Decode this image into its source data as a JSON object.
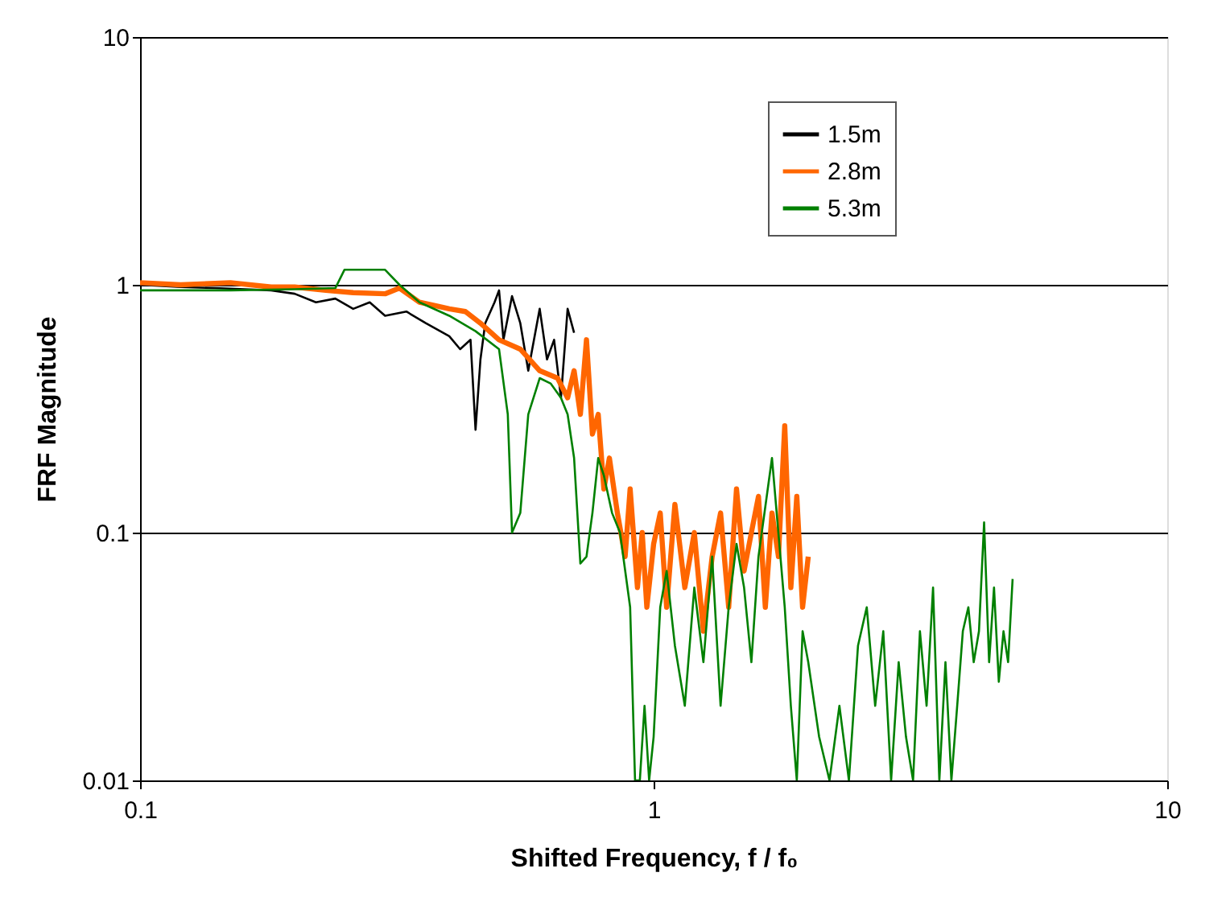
{
  "chart_data": {
    "type": "line",
    "xlabel": "Shifted Frequency, f / f₀",
    "ylabel": "FRF Magnitude",
    "log": "xy",
    "grid": "y",
    "legend": "top right",
    "line_style": "solid",
    "marker": "none",
    "xlim": [
      0.1,
      10
    ],
    "xticks": [
      0.1,
      1,
      10
    ],
    "ylim": [
      0.01,
      10
    ],
    "yticks": [
      0.01,
      0.1,
      1,
      10
    ],
    "series": [
      {
        "name": "1.5m",
        "color": "#000000",
        "x": [
          0.1,
          0.12,
          0.14,
          0.16,
          0.18,
          0.2,
          0.22,
          0.24,
          0.26,
          0.28,
          0.3,
          0.33,
          0.36,
          0.4,
          0.42,
          0.44,
          0.45,
          0.46,
          0.47,
          0.49,
          0.5,
          0.51,
          0.53,
          0.55,
          0.57,
          0.6,
          0.62,
          0.64,
          0.66,
          0.68,
          0.7
        ],
        "values": [
          1.0,
          0.98,
          0.97,
          0.96,
          0.95,
          0.92,
          0.85,
          0.88,
          0.8,
          0.85,
          0.75,
          0.78,
          0.7,
          0.62,
          0.55,
          0.6,
          0.26,
          0.5,
          0.7,
          0.85,
          0.95,
          0.6,
          0.9,
          0.7,
          0.45,
          0.8,
          0.5,
          0.6,
          0.35,
          0.8,
          0.64
        ]
      },
      {
        "name": "2.8m",
        "color": "#ff6600",
        "x": [
          0.1,
          0.12,
          0.15,
          0.18,
          0.2,
          0.23,
          0.26,
          0.3,
          0.32,
          0.35,
          0.38,
          0.4,
          0.43,
          0.46,
          0.5,
          0.55,
          0.6,
          0.65,
          0.68,
          0.7,
          0.72,
          0.74,
          0.76,
          0.78,
          0.8,
          0.82,
          0.85,
          0.88,
          0.9,
          0.93,
          0.95,
          0.97,
          1.0,
          1.03,
          1.06,
          1.1,
          1.15,
          1.2,
          1.25,
          1.3,
          1.35,
          1.4,
          1.45,
          1.5,
          1.55,
          1.6,
          1.65,
          1.7,
          1.75,
          1.8,
          1.85,
          1.9,
          1.95,
          2.0
        ],
        "values": [
          1.02,
          1.0,
          1.02,
          0.98,
          0.98,
          0.95,
          0.93,
          0.92,
          0.97,
          0.85,
          0.82,
          0.8,
          0.78,
          0.7,
          0.6,
          0.55,
          0.45,
          0.42,
          0.35,
          0.45,
          0.3,
          0.6,
          0.25,
          0.3,
          0.15,
          0.2,
          0.12,
          0.08,
          0.15,
          0.06,
          0.1,
          0.05,
          0.09,
          0.12,
          0.05,
          0.13,
          0.06,
          0.1,
          0.04,
          0.08,
          0.12,
          0.05,
          0.15,
          0.07,
          0.1,
          0.14,
          0.05,
          0.12,
          0.08,
          0.27,
          0.06,
          0.14,
          0.05,
          0.08
        ]
      },
      {
        "name": "5.3m",
        "color": "#008000",
        "x": [
          0.1,
          0.15,
          0.2,
          0.24,
          0.25,
          0.3,
          0.32,
          0.35,
          0.4,
          0.45,
          0.5,
          0.52,
          0.53,
          0.55,
          0.57,
          0.6,
          0.63,
          0.66,
          0.68,
          0.7,
          0.72,
          0.74,
          0.76,
          0.78,
          0.8,
          0.83,
          0.86,
          0.9,
          0.92,
          0.94,
          0.96,
          0.98,
          1.0,
          1.03,
          1.06,
          1.1,
          1.15,
          1.2,
          1.25,
          1.3,
          1.35,
          1.4,
          1.45,
          1.5,
          1.55,
          1.6,
          1.7,
          1.8,
          1.85,
          1.9,
          1.95,
          2.0,
          2.1,
          2.2,
          2.3,
          2.4,
          2.5,
          2.6,
          2.7,
          2.8,
          2.9,
          3.0,
          3.1,
          3.2,
          3.3,
          3.4,
          3.5,
          3.6,
          3.7,
          3.8,
          3.9,
          4.0,
          4.1,
          4.2,
          4.3,
          4.4,
          4.5,
          4.6,
          4.7,
          4.8,
          4.9,
          5.0
        ],
        "values": [
          0.95,
          0.95,
          0.96,
          0.97,
          1.15,
          1.15,
          1.0,
          0.85,
          0.75,
          0.65,
          0.55,
          0.3,
          0.1,
          0.12,
          0.3,
          0.42,
          0.4,
          0.35,
          0.3,
          0.2,
          0.075,
          0.08,
          0.12,
          0.2,
          0.17,
          0.12,
          0.1,
          0.05,
          0.01,
          0.01,
          0.02,
          0.01,
          0.015,
          0.05,
          0.07,
          0.035,
          0.02,
          0.06,
          0.03,
          0.08,
          0.02,
          0.05,
          0.09,
          0.06,
          0.03,
          0.08,
          0.2,
          0.05,
          0.02,
          0.01,
          0.04,
          0.03,
          0.015,
          0.01,
          0.02,
          0.01,
          0.035,
          0.05,
          0.02,
          0.04,
          0.01,
          0.03,
          0.015,
          0.01,
          0.04,
          0.02,
          0.06,
          0.01,
          0.03,
          0.01,
          0.02,
          0.04,
          0.05,
          0.03,
          0.04,
          0.11,
          0.03,
          0.06,
          0.025,
          0.04,
          0.03,
          0.065
        ]
      }
    ]
  }
}
